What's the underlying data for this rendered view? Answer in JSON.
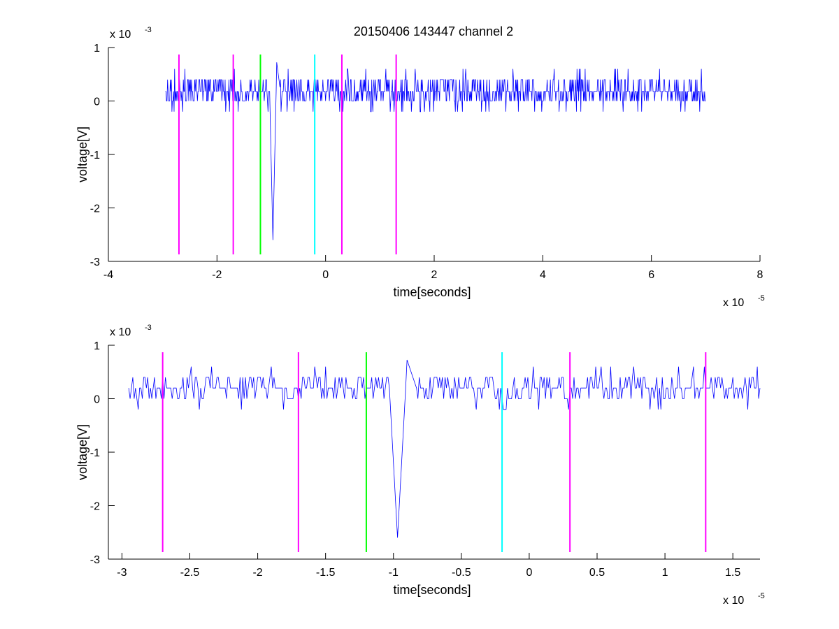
{
  "title": "20150406 143447 channel 2",
  "chart_data": [
    {
      "type": "line",
      "title": "20150406 143447 channel 2",
      "xlabel": "time[seconds]",
      "ylabel": "voltage[V]",
      "x_multiplier_label": "x 10",
      "x_multiplier_exp": "-5",
      "y_multiplier_label": "x 10",
      "y_multiplier_exp": "-3",
      "x_scale": 1e-05,
      "y_scale": 0.001,
      "xlim": [
        -4e-05,
        8e-05
      ],
      "ylim": [
        -0.003,
        0.001
      ],
      "xticks": [
        -4e-05,
        -2e-05,
        0,
        2e-05,
        4e-05,
        6e-05,
        8e-05
      ],
      "xtick_labels": [
        "-4",
        "-2",
        "0",
        "2",
        "4",
        "6",
        "8"
      ],
      "yticks": [
        -0.003,
        -0.002,
        -0.001,
        0,
        0.001
      ],
      "ytick_labels": [
        "-3",
        "-2",
        "-1",
        "0",
        "1"
      ],
      "grid": false,
      "series": [
        {
          "color": "#0000ff",
          "x_start": -2.95e-05,
          "x_end": 7e-05,
          "x_step": 1e-07,
          "baseline": 0.00018,
          "noise_levels": [
            0,
            0.0002,
            0.0004
          ],
          "spike": {
            "x": -9.7e-06,
            "min": -0.0026,
            "peak": 0.0008
          }
        }
      ],
      "vlines": [
        {
          "x": -2.7e-05,
          "color": "#ff00ff"
        },
        {
          "x": -1.7e-05,
          "color": "#ff00ff"
        },
        {
          "x": -1.2e-05,
          "color": "#00ff00"
        },
        {
          "x": -2e-06,
          "color": "#00ffff"
        },
        {
          "x": 3e-06,
          "color": "#ff00ff"
        },
        {
          "x": 1.3e-05,
          "color": "#ff00ff"
        }
      ],
      "vline_ymin": -0.00287,
      "vline_ymax": 0.00087
    },
    {
      "type": "line",
      "title": "",
      "xlabel": "time[seconds]",
      "ylabel": "voltage[V]",
      "x_multiplier_label": "x 10",
      "x_multiplier_exp": "-5",
      "y_multiplier_label": "x 10",
      "y_multiplier_exp": "-3",
      "x_scale": 1e-05,
      "y_scale": 0.001,
      "xlim": [
        -3.1e-05,
        1.7e-05
      ],
      "ylim": [
        -0.003,
        0.001
      ],
      "xticks": [
        -3e-05,
        -2.5e-05,
        -2e-05,
        -1.5e-05,
        -1e-05,
        -5e-06,
        0,
        5e-06,
        1e-05,
        1.5e-05
      ],
      "xtick_labels": [
        "-3",
        "-2.5",
        "-2",
        "-1.5",
        "-1",
        "-0.5",
        "0",
        "0.5",
        "1",
        "1.5"
      ],
      "yticks": [
        -0.003,
        -0.002,
        -0.001,
        0,
        0.001
      ],
      "ytick_labels": [
        "-3",
        "-2",
        "-1",
        "0",
        "1"
      ],
      "grid": false,
      "series": [
        {
          "color": "#0000ff",
          "x_start": -2.95e-05,
          "x_end": 1.7e-05,
          "x_step": 1e-07,
          "baseline": 0.0002,
          "noise_levels": [
            0,
            0.0002,
            0.0004
          ],
          "spike": {
            "x": -9.7e-06,
            "min": -0.0026,
            "peak": 0.0008
          }
        }
      ],
      "vlines": [
        {
          "x": -2.7e-05,
          "color": "#ff00ff"
        },
        {
          "x": -1.7e-05,
          "color": "#ff00ff"
        },
        {
          "x": -1.2e-05,
          "color": "#00ff00"
        },
        {
          "x": -2e-06,
          "color": "#00ffff"
        },
        {
          "x": 3e-06,
          "color": "#ff00ff"
        },
        {
          "x": 1.3e-05,
          "color": "#ff00ff"
        }
      ],
      "vline_ymin": -0.00287,
      "vline_ymax": 0.00087
    }
  ]
}
